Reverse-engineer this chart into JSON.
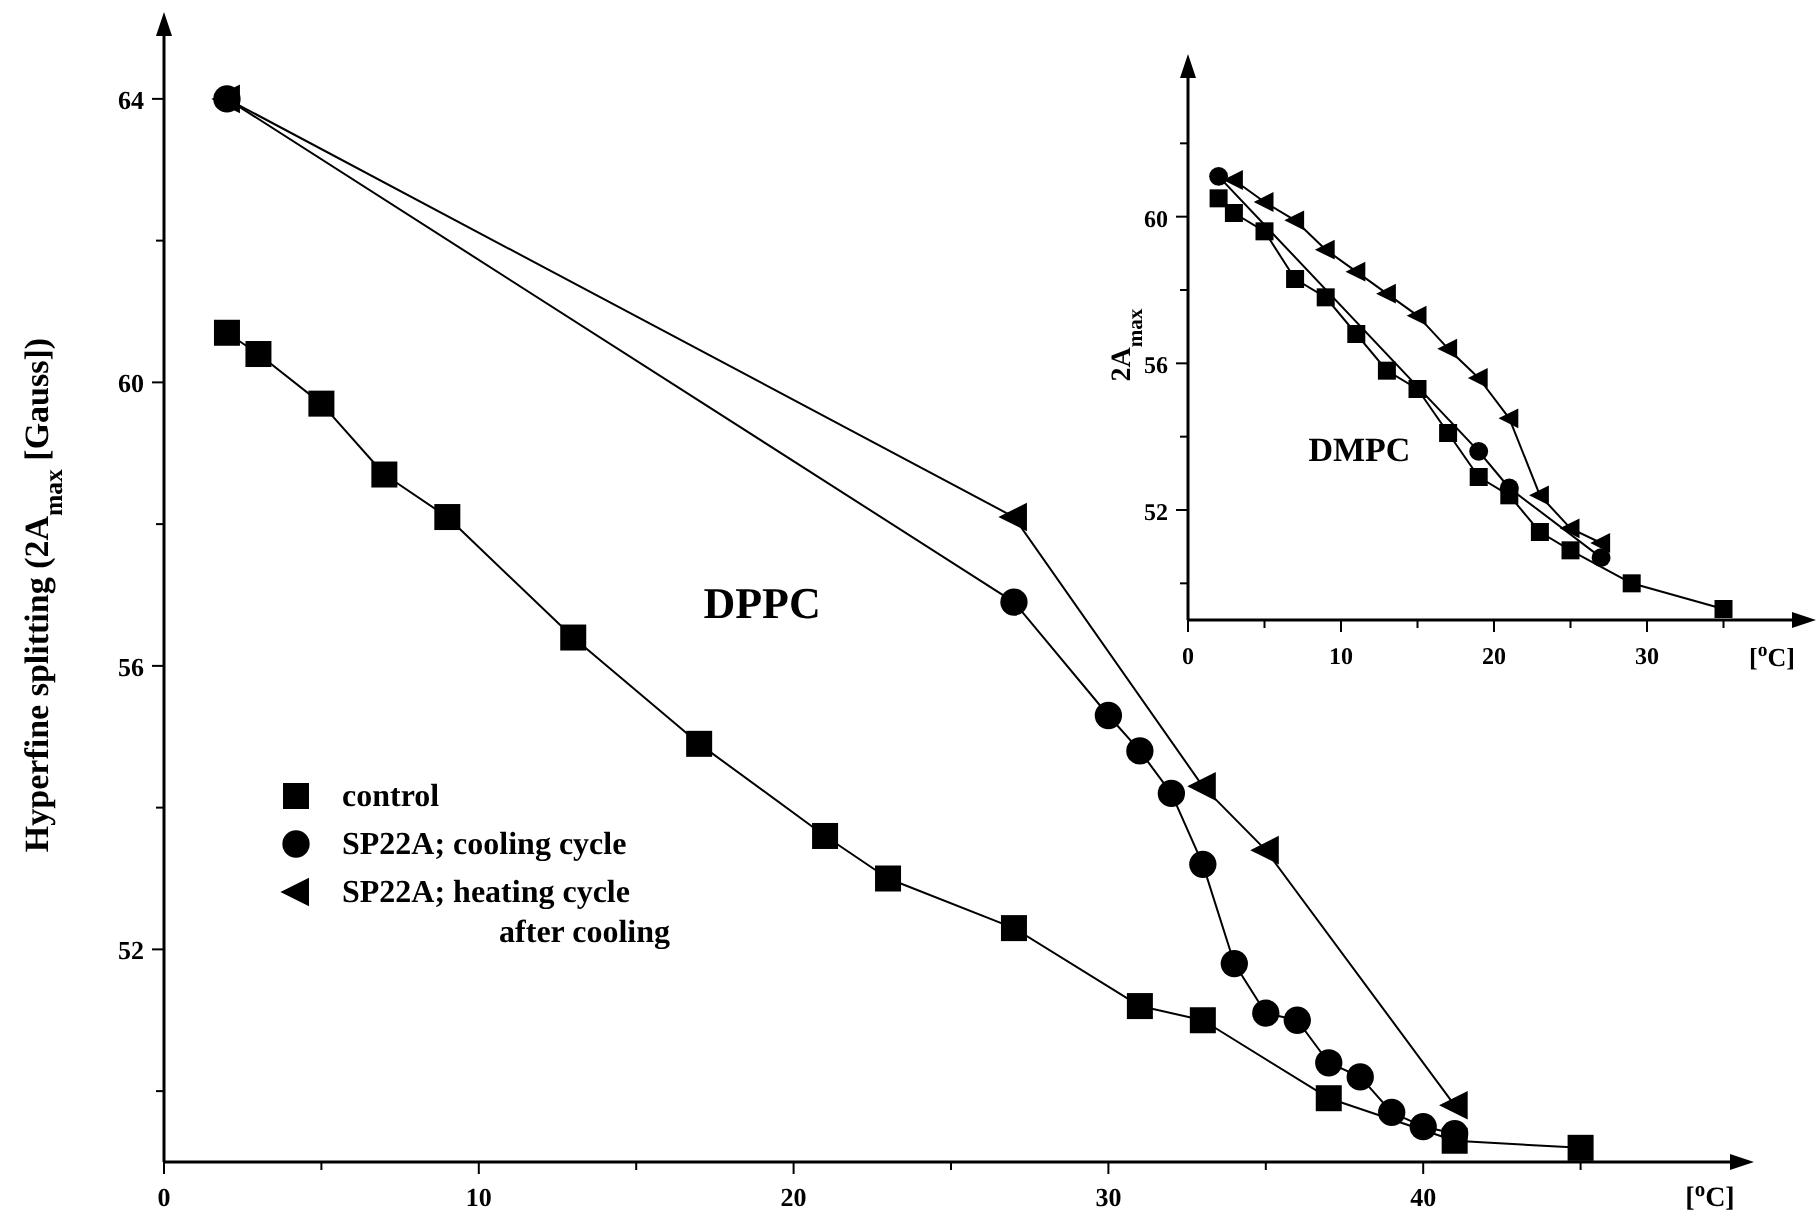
{
  "chart_data": [
    {
      "type": "line",
      "annotations": [
        "DPPC"
      ],
      "xlabel": "[$^{o}$C]",
      "ylabel": "Hyperfine splitting (2A$_{max}$ [Gauss])",
      "xlim": [
        0,
        50
      ],
      "ylim": [
        49,
        65
      ],
      "xticks": [
        0,
        {
          "value": 5,
          "label": null
        },
        10,
        {
          "value": 15,
          "label": null
        },
        20,
        {
          "value": 25,
          "label": null
        },
        30,
        {
          "value": 35,
          "label": null
        },
        40,
        {
          "value": 45,
          "label": null
        }
      ],
      "yticks": [
        {
          "value": 50,
          "label": null
        },
        52,
        {
          "value": 54,
          "label": null
        },
        56,
        {
          "value": 58,
          "label": null
        },
        60,
        {
          "value": 62,
          "label": null
        },
        64
      ],
      "legend": "bottom left",
      "grid": false,
      "line_style": "solid",
      "series": [
        {
          "name": "control",
          "color": "#000000",
          "marker": "square",
          "x": [
            2,
            3,
            5,
            7,
            9,
            13,
            17,
            21,
            23,
            27,
            31,
            33,
            37,
            41,
            45
          ],
          "values": [
            60.7,
            60.4,
            59.7,
            58.7,
            58.1,
            56.4,
            54.9,
            53.6,
            53.0,
            52.3,
            51.2,
            51.0,
            49.9,
            49.3,
            49.2
          ]
        },
        {
          "name": "SP22A; cooling cycle",
          "color": "#000000",
          "marker": "circle",
          "x": [
            2,
            27,
            30,
            31,
            32,
            33,
            34,
            35,
            36,
            37,
            38,
            39,
            40,
            41
          ],
          "values": [
            64.0,
            56.9,
            55.3,
            54.8,
            54.2,
            53.2,
            51.8,
            51.1,
            51.0,
            50.4,
            50.2,
            49.7,
            49.5,
            49.4
          ]
        },
        {
          "name": "SP22A; heating cycle after cooling",
          "color": "#000000",
          "marker": "triangle",
          "x": [
            2,
            27,
            33,
            35,
            41
          ],
          "values": [
            64.0,
            58.1,
            54.3,
            53.4,
            49.8
          ]
        }
      ]
    },
    {
      "type": "line",
      "annotations": [
        "DMPC"
      ],
      "xlabel": "[$^{o}$C]",
      "ylabel": "2A$_{max}$",
      "xlim": [
        0,
        40
      ],
      "ylim": [
        49,
        64
      ],
      "xticks": [
        0,
        {
          "value": 5,
          "label": null
        },
        10,
        {
          "value": 15,
          "label": null
        },
        20,
        {
          "value": 25,
          "label": null
        },
        30,
        {
          "value": 35,
          "label": null
        }
      ],
      "yticks": [
        {
          "value": 50,
          "label": null
        },
        52,
        {
          "value": 54,
          "label": null
        },
        56,
        {
          "value": 58,
          "label": null
        },
        60,
        {
          "value": 62,
          "label": null
        }
      ],
      "grid": false,
      "line_style": "solid",
      "series": [
        {
          "color": "#000000",
          "marker": "square",
          "x": [
            2,
            3,
            5,
            7,
            9,
            11,
            13,
            15,
            17,
            19,
            21,
            23,
            25,
            29,
            35
          ],
          "values": [
            60.5,
            60.1,
            59.6,
            58.3,
            57.8,
            56.8,
            55.8,
            55.3,
            54.1,
            52.9,
            52.4,
            51.4,
            50.9,
            50.0,
            49.3
          ]
        },
        {
          "color": "#000000",
          "marker": "circle",
          "x": [
            2,
            19,
            21,
            27
          ],
          "values": [
            61.1,
            53.6,
            52.6,
            50.7
          ]
        },
        {
          "color": "#000000",
          "marker": "triangle",
          "x": [
            3,
            5,
            7,
            9,
            11,
            13,
            15,
            17,
            19,
            21,
            23,
            25,
            27
          ],
          "values": [
            61.0,
            60.4,
            59.9,
            59.1,
            58.5,
            57.9,
            57.3,
            56.4,
            55.6,
            54.5,
            52.4,
            51.5,
            51.1
          ]
        }
      ]
    }
  ]
}
